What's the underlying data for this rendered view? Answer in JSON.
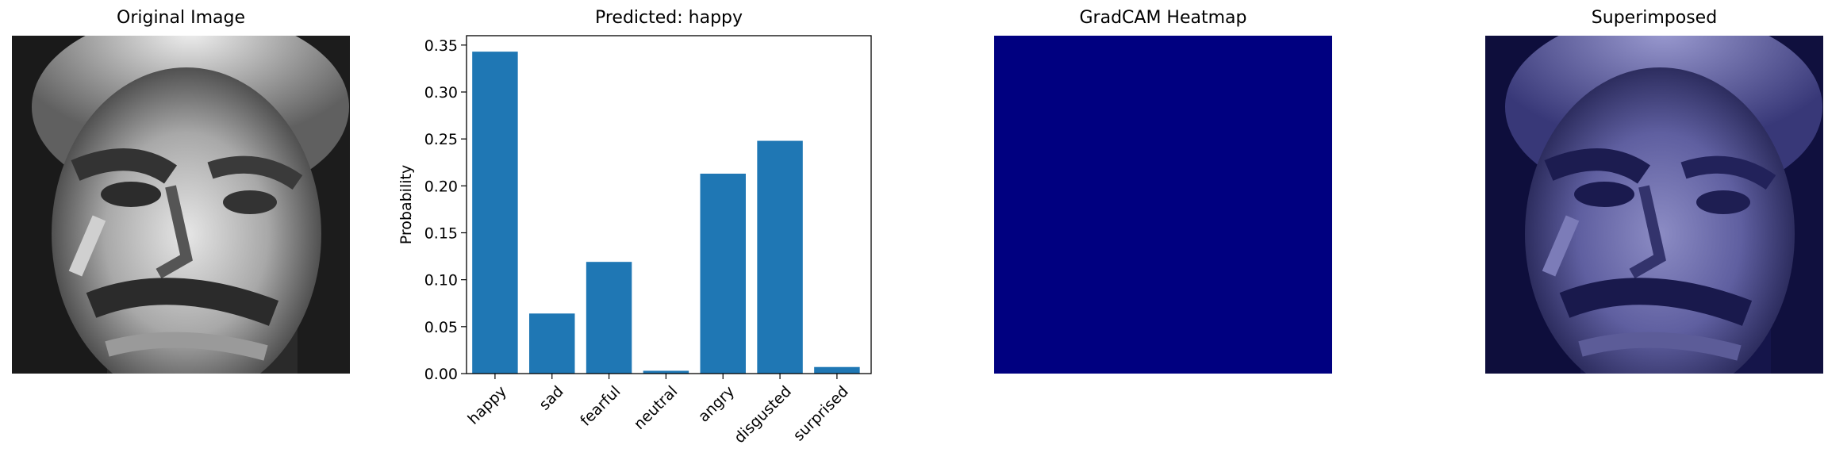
{
  "panels": {
    "original": {
      "title": "Original Image"
    },
    "prediction": {
      "title": "Predicted: happy"
    },
    "heatmap": {
      "title": "GradCAM Heatmap",
      "color": "#000080"
    },
    "superimposed": {
      "title": "Superimposed",
      "tint": "#000080"
    }
  },
  "chart_data": {
    "type": "bar",
    "title": "Predicted: happy",
    "categories": [
      "happy",
      "sad",
      "fearful",
      "neutral",
      "angry",
      "disgusted",
      "surprised"
    ],
    "values": [
      0.343,
      0.064,
      0.119,
      0.003,
      0.213,
      0.248,
      0.007
    ],
    "xlabel": "",
    "ylabel": "Probability",
    "ylim": [
      0,
      0.36
    ],
    "yticks": [
      0.0,
      0.05,
      0.1,
      0.15,
      0.2,
      0.25,
      0.3,
      0.35
    ],
    "ytick_labels": [
      "0.00",
      "0.05",
      "0.10",
      "0.15",
      "0.20",
      "0.25",
      "0.30",
      "0.35"
    ],
    "bar_color": "#1f77b4",
    "grid": false
  }
}
